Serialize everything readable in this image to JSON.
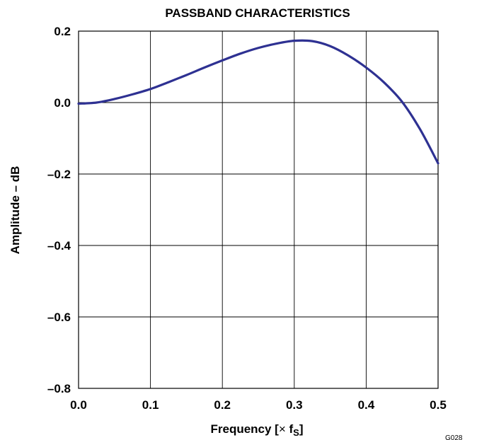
{
  "chart_data": {
    "type": "line",
    "title": "PASSBAND CHARACTERISTICS",
    "xlabel_main": "Frequency [",
    "xlabel_times": "×",
    "xlabel_f": " f",
    "xlabel_sub": "S",
    "xlabel_end": "]",
    "ylabel": "Amplitude – dB",
    "xlim": [
      0.0,
      0.5
    ],
    "ylim": [
      -0.8,
      0.2
    ],
    "xticks": [
      "0.0",
      "0.1",
      "0.2",
      "0.3",
      "0.4",
      "0.5"
    ],
    "yticks": [
      "0.2",
      "0.0",
      "–0.2",
      "–0.4",
      "–0.6",
      "–0.8"
    ],
    "grid": true,
    "series": [
      {
        "color": "#2e3192",
        "x": [
          0.0,
          0.025,
          0.05,
          0.075,
          0.1,
          0.125,
          0.15,
          0.175,
          0.2,
          0.225,
          0.25,
          0.275,
          0.3,
          0.325,
          0.35,
          0.375,
          0.4,
          0.425,
          0.45,
          0.475,
          0.5
        ],
        "y": [
          -0.003,
          0.0,
          0.01,
          0.023,
          0.038,
          0.057,
          0.077,
          0.098,
          0.118,
          0.137,
          0.153,
          0.165,
          0.173,
          0.172,
          0.158,
          0.132,
          0.098,
          0.056,
          0.002,
          -0.075,
          -0.17
        ]
      }
    ]
  },
  "figure_code": "G028"
}
